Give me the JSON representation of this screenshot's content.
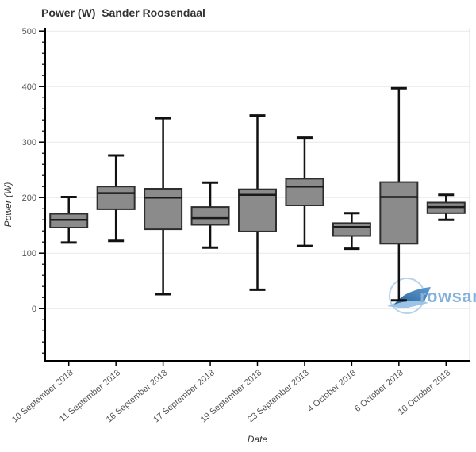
{
  "title": "Power (W)  Sander Roosendaal",
  "watermark": {
    "text": "rowsan"
  },
  "colors": {
    "box_fill": "#8b8b8b",
    "box_border": "#2e2e2e",
    "median": "#1a1a1a",
    "whisker": "#111111",
    "grid": "#e8e8e8",
    "plot_border": "#dddddd",
    "axis": "#000000",
    "tick_label": "#555555",
    "axis_title": "#333333",
    "title": "#333333",
    "watermark_text": "#85b2da",
    "watermark_circle": "#b5d3ec",
    "watermark_swoosh_dark": "#2a6496",
    "watermark_swoosh_mid": "#5e9bd3",
    "watermark_swoosh_light": "#9dc4e6"
  },
  "chart_data": {
    "type": "boxplot",
    "title": "Power (W)  Sander Roosendaal",
    "xlabel": "Date",
    "ylabel": "Power (W)",
    "ylim": [
      -94,
      506
    ],
    "yticks": [
      0,
      100,
      200,
      300,
      400,
      500
    ],
    "y_minor_step": 20,
    "y_minor_range": [
      -80,
      500
    ],
    "grid": "horizontal",
    "legend": "none",
    "five_number_summary_order": [
      "whisker_low",
      "q1",
      "median",
      "q3",
      "whisker_high"
    ],
    "categories": [
      "10 September 2018",
      "11 September 2018",
      "16 September 2018",
      "17 September 2018",
      "19 September 2018",
      "23 September 2018",
      "4 October 2018",
      "6 October 2018",
      "10 October 2018"
    ],
    "values": [
      [
        119,
        146,
        160,
        171,
        201
      ],
      [
        122,
        179,
        208,
        220,
        276
      ],
      [
        26,
        143,
        200,
        216,
        343
      ],
      [
        110,
        151,
        163,
        183,
        227
      ],
      [
        34,
        139,
        205,
        215,
        348
      ],
      [
        113,
        186,
        220,
        234,
        308
      ],
      [
        108,
        131,
        147,
        154,
        172
      ],
      [
        15,
        117,
        201,
        228,
        397
      ],
      [
        160,
        172,
        183,
        191,
        205
      ]
    ]
  }
}
